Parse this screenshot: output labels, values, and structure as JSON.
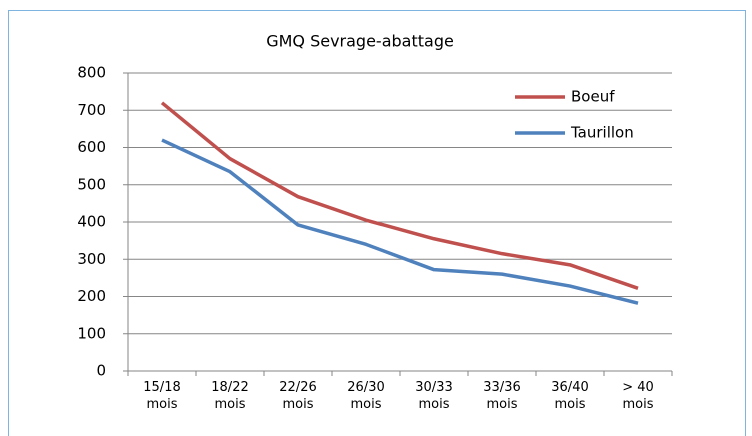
{
  "chart_data": {
    "type": "line",
    "title": "GMQ Sevrage-abattage",
    "categories": [
      "15/18 mois",
      "18/22 mois",
      "22/26 mois",
      "26/30 mois",
      "30/33 mois",
      "33/36 mois",
      "36/40 mois",
      "> 40 mois"
    ],
    "series": [
      {
        "name": "Boeuf",
        "color": "#c0504d",
        "values": [
          720,
          570,
          468,
          405,
          355,
          315,
          285,
          222
        ]
      },
      {
        "name": "Taurillon",
        "color": "#4f81bd",
        "values": [
          620,
          535,
          392,
          340,
          272,
          260,
          228,
          182
        ]
      }
    ],
    "ylim": [
      0,
      800
    ],
    "yticks": [
      0,
      100,
      200,
      300,
      400,
      500,
      600,
      700,
      800
    ],
    "grid": true,
    "legend": "top-right"
  }
}
